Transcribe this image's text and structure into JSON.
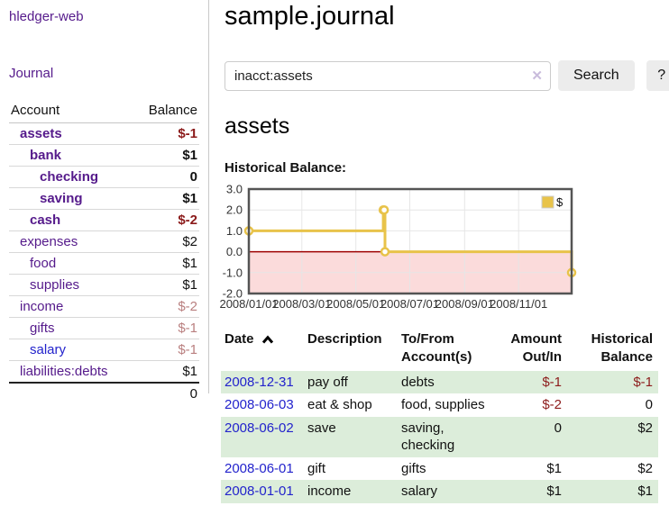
{
  "app": {
    "title": "hledger-web"
  },
  "sidebar": {
    "journal_label": "Journal",
    "accounts_table": {
      "headers": {
        "account": "Account",
        "balance": "Balance"
      },
      "rows": [
        {
          "account": "assets",
          "level": 1,
          "bold": true,
          "balance": "$-1",
          "balance_class": "neg-strong",
          "link_class": ""
        },
        {
          "account": "bank",
          "level": 2,
          "bold": true,
          "balance": "$1",
          "balance_class": "",
          "link_class": ""
        },
        {
          "account": "checking",
          "level": 3,
          "bold": true,
          "balance": "0",
          "balance_class": "",
          "link_class": ""
        },
        {
          "account": "saving",
          "level": 3,
          "bold": true,
          "balance": "$1",
          "balance_class": "",
          "link_class": ""
        },
        {
          "account": "cash",
          "level": 2,
          "bold": true,
          "balance": "$-2",
          "balance_class": "neg-strong",
          "link_class": ""
        },
        {
          "account": "expenses",
          "level": 1,
          "bold": false,
          "balance": "$2",
          "balance_class": "",
          "link_class": ""
        },
        {
          "account": "food",
          "level": 2,
          "bold": false,
          "balance": "$1",
          "balance_class": "",
          "link_class": ""
        },
        {
          "account": "supplies",
          "level": 2,
          "bold": false,
          "balance": "$1",
          "balance_class": "",
          "link_class": ""
        },
        {
          "account": "income",
          "level": 1,
          "bold": false,
          "balance": "$-2",
          "balance_class": "neg-soft",
          "link_class": ""
        },
        {
          "account": "gifts",
          "level": 2,
          "bold": false,
          "balance": "$-1",
          "balance_class": "neg-soft",
          "link_class": ""
        },
        {
          "account": "salary",
          "level": 2,
          "bold": false,
          "balance": "$-1",
          "balance_class": "neg-soft",
          "link_class": "blue"
        },
        {
          "account": "liabilities:debts",
          "level": 1,
          "bold": false,
          "balance": "$1",
          "balance_class": "",
          "link_class": ""
        }
      ],
      "total": "0"
    }
  },
  "main": {
    "title": "sample.journal",
    "search": {
      "value": "inacct:assets",
      "clear_icon": "✕",
      "search_label": "Search",
      "help_label": "?"
    },
    "account_heading": "assets",
    "chart_label": "Historical Balance:"
  },
  "chart_data": {
    "type": "line",
    "style": "step",
    "title": "Historical Balance",
    "x": [
      "2008-01-01",
      "2008-06-01",
      "2008-06-02",
      "2008-06-03",
      "2008-12-31"
    ],
    "series": [
      {
        "name": "$",
        "color": "#e8c34a",
        "values": [
          1,
          2,
          2,
          0,
          -1
        ]
      }
    ],
    "xlim": [
      "2008-01-01",
      "2008-12-31"
    ],
    "ylim": [
      -2,
      3
    ],
    "y_ticks": [
      3,
      2,
      1,
      0,
      -1,
      -2
    ],
    "y_tick_labels": [
      "3.0",
      "2.0",
      "1.0",
      "0.0",
      "-1.0",
      "-2.0"
    ],
    "x_tick_labels": [
      "2008/01/01",
      "2008/03/01",
      "2008/05/01",
      "2008/07/01",
      "2008/09/01",
      "2008/11/01"
    ],
    "grid": true,
    "legend_position": "top-right",
    "legend_label": "$",
    "negative_region_color": "#fbdbdb",
    "zero_line_color": "#9e0000",
    "border_color": "#545454",
    "grid_color": "#e6e6e6",
    "axis_text_color": "#333333"
  },
  "transactions_table": {
    "headers": [
      {
        "label": "Date",
        "key": "date",
        "sorted": "asc"
      },
      {
        "label": "Description",
        "key": "desc",
        "sorted": ""
      },
      {
        "label": "To/From Account(s)",
        "key": "acct",
        "sorted": ""
      },
      {
        "label": "Amount Out/In",
        "key": "amt",
        "sorted": ""
      },
      {
        "label": "Historical Balance",
        "key": "bal",
        "sorted": ""
      }
    ],
    "rows": [
      {
        "date": "2008-12-31",
        "description": "pay off",
        "accounts": "debts",
        "amount": "$-1",
        "amount_negative": true,
        "balance": "$-1",
        "balance_negative": true,
        "highlight": true
      },
      {
        "date": "2008-06-03",
        "description": "eat & shop",
        "accounts": "food, supplies",
        "amount": "$-2",
        "amount_negative": true,
        "balance": "0",
        "balance_negative": false,
        "highlight": false
      },
      {
        "date": "2008-06-02",
        "description": "save",
        "accounts": "saving, checking",
        "amount": "0",
        "amount_negative": false,
        "balance": "$2",
        "balance_negative": false,
        "highlight": true
      },
      {
        "date": "2008-06-01",
        "description": "gift",
        "accounts": "gifts",
        "amount": "$1",
        "amount_negative": false,
        "balance": "$2",
        "balance_negative": false,
        "highlight": false
      },
      {
        "date": "2008-01-01",
        "description": "income",
        "accounts": "salary",
        "amount": "$1",
        "amount_negative": false,
        "balance": "$1",
        "balance_negative": false,
        "highlight": true
      }
    ]
  }
}
